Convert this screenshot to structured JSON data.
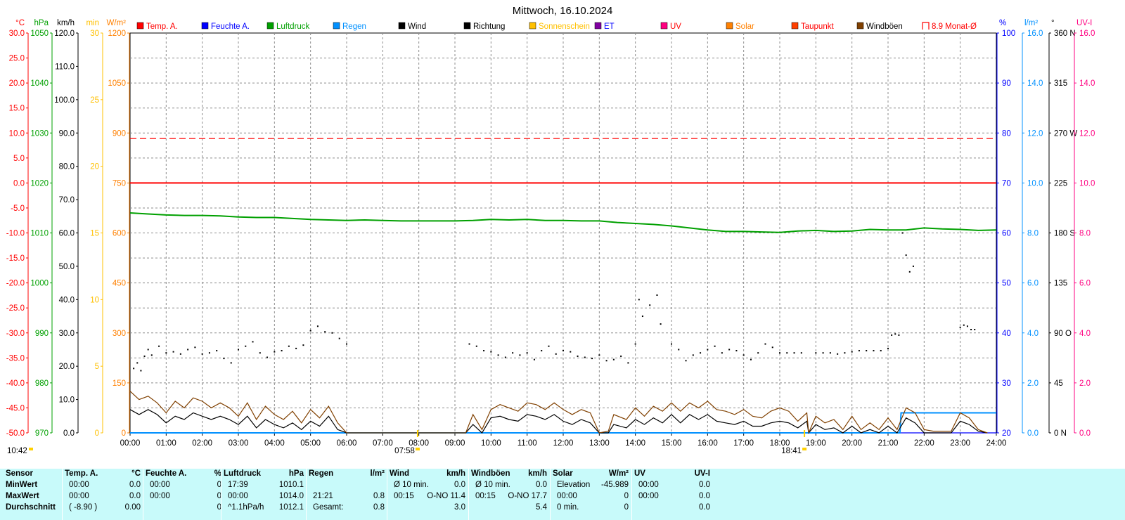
{
  "chart_data": {
    "type": "line",
    "title": "Mittwoch, 16.10.2024",
    "x_ticks": [
      "00:00",
      "01:00",
      "02:00",
      "03:00",
      "04:00",
      "05:00",
      "06:00",
      "07:00",
      "08:00",
      "09:00",
      "10:00",
      "11:00",
      "12:00",
      "13:00",
      "14:00",
      "15:00",
      "16:00",
      "17:00",
      "18:00",
      "19:00",
      "20:00",
      "21:00",
      "22:00",
      "23:00",
      "24:00"
    ],
    "xlim": [
      0,
      24
    ],
    "grid": true,
    "legend_position": "top",
    "legend": [
      {
        "label": "Temp. A.",
        "color": "#ff0000",
        "label_color": "#ff0000",
        "box": "solid"
      },
      {
        "label": "Feuchte A.",
        "color": "#0000ff",
        "label_color": "#0000ff",
        "box": "solid"
      },
      {
        "label": "Luftdruck",
        "color": "#00a000",
        "label_color": "#00a000",
        "box": "solid"
      },
      {
        "label": "Regen",
        "color": "#0090ff",
        "label_color": "#0090ff",
        "box": "solid"
      },
      {
        "label": "Wind",
        "color": "#000000",
        "label_color": "#000000",
        "box": "solid"
      },
      {
        "label": "Richtung",
        "color": "#000000",
        "label_color": "#000000",
        "box": "solid"
      },
      {
        "label": "Sonnenschein",
        "color": "#ffc000",
        "label_color": "#ffc000",
        "box": "solid"
      },
      {
        "label": "ET",
        "color": "#8000a0",
        "label_color": "#0000ff",
        "box": "solid"
      },
      {
        "label": "UV",
        "color": "#ff0080",
        "label_color": "#ff0000",
        "box": "solid"
      },
      {
        "label": "Solar",
        "color": "#ff8000",
        "label_color": "#ff8000",
        "box": "solid"
      },
      {
        "label": "Taupunkt",
        "color": "#ff4000",
        "label_color": "#ff0000",
        "box": "solid"
      },
      {
        "label": "Windböen",
        "color": "#804000",
        "label_color": "#000000",
        "box": "solid"
      },
      {
        "label": "8.9 Monat-Ø",
        "color": "#ff0000",
        "label_color": "#ff0000",
        "box": "outline"
      }
    ],
    "axes_left": [
      {
        "unit": "°C",
        "color": "#ff0000",
        "range": [
          -50,
          30
        ],
        "ticks": [
          "30.0",
          "25.0",
          "20.0",
          "15.0",
          "10.0",
          "5.0",
          "0.0",
          "-5.0",
          "-10.0",
          "-15.0",
          "-20.0",
          "-25.0",
          "-30.0",
          "-35.0",
          "-40.0",
          "-45.0",
          "-50.0"
        ]
      },
      {
        "unit": "hPa",
        "color": "#00a000",
        "range": [
          970,
          1050
        ],
        "ticks": [
          "1050",
          "1040",
          "1030",
          "1020",
          "1010",
          "1000",
          "990",
          "980",
          "970"
        ]
      },
      {
        "unit": "km/h",
        "color": "#000000",
        "range": [
          0,
          120
        ],
        "ticks": [
          "120.0",
          "110.0",
          "100.0",
          "90.0",
          "80.0",
          "70.0",
          "60.0",
          "50.0",
          "40.0",
          "30.0",
          "20.0",
          "10.0",
          "0.0"
        ]
      },
      {
        "unit": "min",
        "color": "#ffc000",
        "range": [
          0,
          30
        ],
        "ticks": [
          "30",
          "25",
          "20",
          "15",
          "10",
          "5",
          "0"
        ]
      },
      {
        "unit": "W/m²",
        "color": "#ff8000",
        "range": [
          0,
          1200
        ],
        "ticks": [
          "1200",
          "1050",
          "900",
          "750",
          "600",
          "450",
          "300",
          "150",
          "0"
        ]
      }
    ],
    "axes_right": [
      {
        "unit": "%",
        "color": "#0000ff",
        "range": [
          20,
          100
        ],
        "ticks": [
          "100",
          "90",
          "80",
          "70",
          "60",
          "50",
          "40",
          "30",
          "20"
        ]
      },
      {
        "unit": "l/m²",
        "color": "#0090ff",
        "range": [
          0,
          16
        ],
        "ticks": [
          "16.0",
          "14.0",
          "12.0",
          "10.0",
          "8.0",
          "6.0",
          "4.0",
          "2.0",
          "0.0"
        ]
      },
      {
        "unit": "°",
        "color": "#000000",
        "range": [
          0,
          360
        ],
        "ticks": [
          "360 N",
          "315",
          "270 W",
          "225",
          "180 S",
          "135",
          "90 O",
          "45",
          "0 N"
        ]
      },
      {
        "unit": "UV-I",
        "color": "#ff0080",
        "range": [
          0,
          16
        ],
        "ticks": [
          "16.0",
          "14.0",
          "12.0",
          "10.0",
          "8.0",
          "6.0",
          "4.0",
          "2.0",
          "0.0"
        ]
      }
    ],
    "series": [
      {
        "name": "Temp. A.",
        "color": "#ff0000",
        "unit": "°C",
        "x": [
          0,
          24
        ],
        "y": [
          0.0,
          0.0
        ]
      },
      {
        "name": "8.9 Monat-Ø",
        "color": "#ff0000",
        "dashed": true,
        "unit": "°C",
        "x": [
          0,
          24
        ],
        "y": [
          8.9,
          8.9
        ]
      },
      {
        "name": "Feuchte A.",
        "color": "#0000ff",
        "unit": "%",
        "x": [
          0,
          24
        ],
        "y": [
          20,
          20
        ]
      },
      {
        "name": "Luftdruck",
        "color": "#00a000",
        "unit": "hPa",
        "x": [
          0,
          0.5,
          1,
          1.5,
          2,
          2.5,
          3,
          3.5,
          4,
          4.5,
          5,
          5.5,
          6,
          6.5,
          7,
          7.5,
          8,
          8.5,
          9,
          9.5,
          10,
          10.5,
          11,
          11.5,
          12,
          12.5,
          13,
          13.5,
          14,
          14.5,
          15,
          15.5,
          16,
          16.5,
          17,
          17.5,
          18,
          18.5,
          19,
          19.5,
          20,
          20.5,
          21,
          21.5,
          22,
          22.5,
          23,
          23.5,
          24
        ],
        "y": [
          1014.0,
          1013.8,
          1013.6,
          1013.5,
          1013.5,
          1013.4,
          1013.2,
          1013.1,
          1013.1,
          1012.9,
          1012.7,
          1012.6,
          1012.5,
          1012.6,
          1012.5,
          1012.4,
          1012.4,
          1012.4,
          1012.4,
          1012.5,
          1012.7,
          1012.6,
          1012.7,
          1012.5,
          1012.5,
          1012.4,
          1012.4,
          1012.1,
          1011.9,
          1011.7,
          1011.4,
          1011.0,
          1010.6,
          1010.3,
          1010.3,
          1010.2,
          1010.1,
          1010.4,
          1010.5,
          1010.3,
          1010.4,
          1010.7,
          1010.6,
          1010.6,
          1011.0,
          1010.8,
          1010.7,
          1010.5,
          1010.6
        ]
      },
      {
        "name": "Regen",
        "color": "#0090ff",
        "unit": "l/m²",
        "x": [
          0,
          21.33,
          21.36,
          24
        ],
        "y": [
          0,
          0,
          0.8,
          0.8
        ]
      },
      {
        "name": "Wind",
        "color": "#000000",
        "unit": "km/h",
        "x": [
          0,
          0.25,
          0.5,
          0.75,
          1,
          1.25,
          1.5,
          1.75,
          2,
          2.25,
          2.5,
          2.75,
          3,
          3.25,
          3.5,
          3.75,
          4,
          4.25,
          4.5,
          4.75,
          5,
          5.25,
          5.5,
          5.75,
          6,
          6.25,
          6.5,
          9.3,
          9.5,
          9.75,
          10,
          10.25,
          10.5,
          10.75,
          11,
          11.25,
          11.5,
          11.75,
          12,
          12.25,
          12.5,
          12.75,
          13,
          13.25,
          13.4,
          13.75,
          14,
          14.25,
          14.5,
          14.75,
          15,
          15.25,
          15.5,
          15.75,
          16,
          16.25,
          16.5,
          16.75,
          17,
          17.25,
          17.5,
          17.75,
          18,
          18.25,
          18.5,
          18.75,
          18.8,
          19,
          19.25,
          19.5,
          19.75,
          20,
          20.25,
          20.5,
          20.75,
          21,
          21.25,
          21.5,
          21.75,
          22,
          22.25,
          22.5,
          22.75,
          23,
          23.25,
          23.5,
          23.75
        ],
        "y": [
          7.0,
          5.5,
          7.0,
          5.5,
          3.0,
          5.0,
          4.0,
          6.0,
          5.0,
          4.0,
          5.0,
          4.0,
          2.5,
          5.0,
          1.5,
          4.0,
          2.5,
          1.5,
          3.0,
          1.0,
          3.5,
          2.0,
          5.0,
          1.0,
          0.0,
          0.0,
          0.0,
          0.0,
          2.5,
          0.0,
          4.5,
          5.0,
          4.0,
          3.5,
          5.5,
          5.0,
          4.0,
          5.5,
          3.5,
          2.5,
          4.0,
          3.0,
          0.0,
          0.0,
          2.5,
          1.5,
          4.0,
          2.5,
          4.5,
          3.0,
          5.5,
          3.0,
          5.5,
          4.0,
          5.5,
          3.5,
          3.0,
          2.5,
          3.5,
          2.0,
          2.0,
          3.0,
          3.5,
          3.0,
          1.5,
          3.5,
          0.0,
          2.5,
          1.0,
          1.5,
          0.0,
          2.0,
          0.0,
          1.0,
          0.0,
          2.0,
          0.0,
          4.5,
          3.0,
          0.0,
          0.0,
          0.0,
          0.0,
          3.5,
          2.5,
          0.5,
          0.0
        ]
      },
      {
        "name": "Windböen",
        "color": "#804000",
        "unit": "km/h",
        "x": [
          0,
          0.25,
          0.5,
          0.75,
          1,
          1.25,
          1.5,
          1.75,
          2,
          2.25,
          2.5,
          2.75,
          3,
          3.25,
          3.5,
          3.75,
          4,
          4.25,
          4.5,
          4.75,
          5,
          5.25,
          5.5,
          5.75,
          6,
          6.25,
          6.5,
          9.3,
          9.5,
          9.75,
          10,
          10.25,
          10.5,
          10.75,
          11,
          11.25,
          11.5,
          11.75,
          12,
          12.25,
          12.5,
          12.75,
          13,
          13.25,
          13.4,
          13.75,
          14,
          14.25,
          14.5,
          14.75,
          15,
          15.25,
          15.5,
          15.75,
          16,
          16.25,
          16.5,
          16.75,
          17,
          17.25,
          17.5,
          17.75,
          18,
          18.25,
          18.5,
          18.75,
          18.8,
          19,
          19.25,
          19.5,
          19.75,
          20,
          20.25,
          20.5,
          20.75,
          21,
          21.25,
          21.5,
          21.75,
          22,
          22.25,
          22.5,
          22.75,
          23,
          23.25,
          23.5,
          23.75
        ],
        "y": [
          12.5,
          10.0,
          11.0,
          9.0,
          6.0,
          9.5,
          7.5,
          10.5,
          9.5,
          7.5,
          9.0,
          7.5,
          5.0,
          9.0,
          4.0,
          8.0,
          5.5,
          4.0,
          6.5,
          3.0,
          7.0,
          4.5,
          8.0,
          3.0,
          0.0,
          0.0,
          0.0,
          0.0,
          5.5,
          1.0,
          7.0,
          8.5,
          7.5,
          6.5,
          9.0,
          8.5,
          7.0,
          9.0,
          7.0,
          5.5,
          7.0,
          6.0,
          0.0,
          0.5,
          5.5,
          4.0,
          7.5,
          5.0,
          8.0,
          6.5,
          9.0,
          6.5,
          9.0,
          7.5,
          9.5,
          7.0,
          6.5,
          5.5,
          7.0,
          5.0,
          4.5,
          6.5,
          7.5,
          6.5,
          3.5,
          6.0,
          0.0,
          5.0,
          3.0,
          4.0,
          1.0,
          5.0,
          1.0,
          3.0,
          1.0,
          4.5,
          1.0,
          7.5,
          6.0,
          1.0,
          0.5,
          0.5,
          0.5,
          6.0,
          4.5,
          1.0,
          0.0
        ]
      },
      {
        "name": "Richtung",
        "color": "#000000",
        "unit": "°",
        "marker": "dot",
        "x": [
          0.1,
          0.2,
          0.3,
          0.4,
          0.5,
          0.6,
          0.8,
          1.0,
          1.2,
          1.4,
          1.6,
          1.8,
          2.0,
          2.2,
          2.4,
          2.6,
          2.8,
          3.0,
          3.2,
          3.4,
          3.6,
          3.8,
          4.0,
          4.2,
          4.4,
          4.6,
          4.8,
          5.0,
          5.2,
          5.4,
          5.6,
          5.8,
          6.0,
          9.4,
          9.6,
          9.8,
          10.0,
          10.2,
          10.4,
          10.6,
          10.8,
          11.0,
          11.2,
          11.4,
          11.6,
          11.8,
          12.0,
          12.2,
          12.4,
          12.6,
          12.8,
          13.0,
          13.2,
          13.4,
          13.6,
          13.8,
          14.0,
          14.1,
          14.2,
          14.4,
          14.6,
          14.7,
          15.0,
          15.2,
          15.4,
          15.6,
          15.8,
          16.0,
          16.2,
          16.4,
          16.6,
          16.8,
          17.0,
          17.2,
          17.4,
          17.6,
          17.8,
          18.0,
          18.2,
          18.4,
          18.6,
          19.0,
          19.2,
          19.4,
          19.6,
          19.8,
          20.0,
          20.2,
          20.4,
          20.6,
          20.8,
          21.0,
          21.1,
          21.2,
          21.3,
          21.4,
          21.5,
          21.6,
          21.7,
          23.0,
          23.1,
          23.2,
          23.3,
          23.4
        ],
        "y": [
          58,
          63,
          56,
          69,
          75,
          70,
          78,
          72,
          73,
          71,
          75,
          77,
          71,
          72,
          74,
          67,
          63,
          75,
          78,
          82,
          72,
          68,
          73,
          74,
          78,
          76,
          79,
          92,
          96,
          91,
          90,
          85,
          80,
          80,
          78,
          74,
          73,
          70,
          68,
          72,
          70,
          72,
          66,
          74,
          78,
          71,
          74,
          73,
          69,
          68,
          67,
          70,
          65,
          66,
          69,
          63,
          80,
          120,
          105,
          115,
          124,
          98,
          80,
          75,
          65,
          70,
          72,
          75,
          78,
          72,
          75,
          74,
          70,
          66,
          72,
          80,
          77,
          72,
          72,
          72,
          72,
          72,
          72,
          72,
          71,
          72,
          73,
          74,
          74,
          74,
          74,
          76,
          88,
          89,
          88,
          180,
          160,
          145,
          150,
          95,
          97,
          96,
          93,
          93
        ]
      }
    ]
  },
  "time_markers": {
    "left": "10:42",
    "sunrise": "07:58",
    "sunset": "18:41"
  },
  "stats": {
    "row_labels": [
      "Sensor",
      "MinWert",
      "MaxWert",
      "Durchschnitt"
    ],
    "columns": [
      {
        "title": "Temp. A.",
        "unit": "°C",
        "rows": [
          [
            "00:00",
            "0.0"
          ],
          [
            "00:00",
            "0.0"
          ],
          [
            "( -8.90 )",
            "0.00"
          ]
        ]
      },
      {
        "title": "Feuchte A.",
        "unit": "%",
        "rows": [
          [
            "00:00",
            "0"
          ],
          [
            "00:00",
            "0"
          ],
          [
            "",
            "0"
          ]
        ]
      },
      {
        "title": "Luftdruck",
        "unit": "hPa",
        "rows": [
          [
            "17:39",
            "1010.1"
          ],
          [
            "00:00",
            "1014.0"
          ],
          [
            "^1.1hPa/h",
            "1012.1"
          ]
        ]
      },
      {
        "title": "Regen",
        "unit": "l/m²",
        "rows": [
          [
            "",
            ""
          ],
          [
            "21:21",
            "0.8"
          ],
          [
            "Gesamt:",
            "0.8"
          ]
        ]
      },
      {
        "title": "Wind",
        "unit": "km/h",
        "rows": [
          [
            "Ø 10 min.",
            "0.0"
          ],
          [
            "00:15",
            "O-NO 11.4"
          ],
          [
            "",
            "3.0"
          ]
        ]
      },
      {
        "title": "Windböen",
        "unit": "km/h",
        "rows": [
          [
            "Ø 10 min.",
            "0.0"
          ],
          [
            "00:15",
            "O-NO 17.7"
          ],
          [
            "",
            "5.4"
          ]
        ]
      },
      {
        "title": "Solar",
        "unit": "W/m²",
        "rows": [
          [
            "Elevation",
            "-45.989"
          ],
          [
            "00:00",
            "0"
          ],
          [
            "0 min.",
            "0"
          ]
        ]
      },
      {
        "title": "UV",
        "unit": "UV-I",
        "rows": [
          [
            "00:00",
            "0.0"
          ],
          [
            "00:00",
            "0.0"
          ],
          [
            "",
            "0.0"
          ]
        ]
      }
    ]
  }
}
